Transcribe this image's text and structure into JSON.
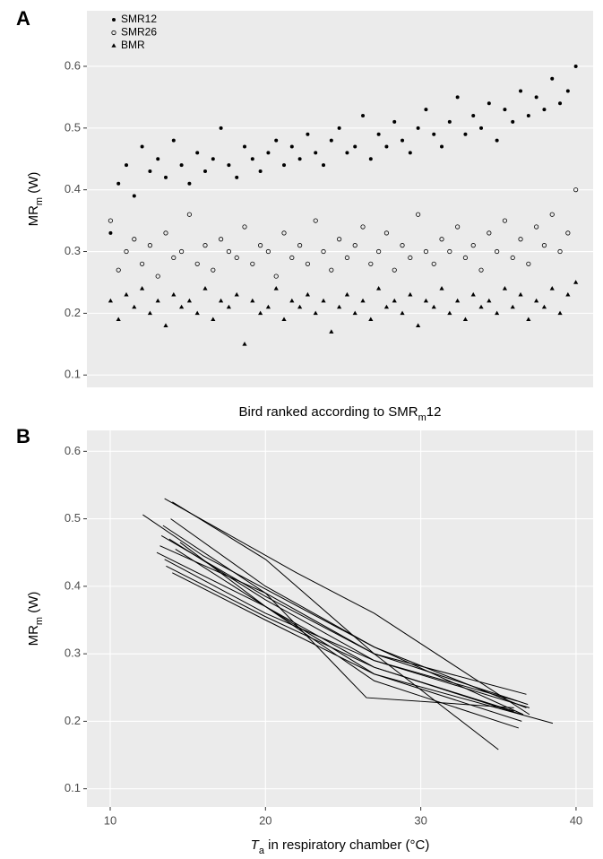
{
  "chart_data": [
    {
      "type": "scatter",
      "panel_label": "A",
      "x_label": [
        {
          "text": "Bird ranked according to SMR",
          "style": "normal"
        },
        {
          "text": "m",
          "style": "sub"
        },
        {
          "text": "12",
          "style": "normal"
        }
      ],
      "y_label": [
        {
          "text": "MR",
          "style": "normal"
        },
        {
          "text": "m",
          "style": "sub"
        },
        {
          "text": " (W)",
          "style": "normal"
        }
      ],
      "x": [
        1,
        2,
        3,
        4,
        5,
        6,
        7,
        8,
        9,
        10,
        11,
        12,
        13,
        14,
        15,
        16,
        17,
        18,
        19,
        20,
        21,
        22,
        23,
        24,
        25,
        26,
        27,
        28,
        29,
        30,
        31,
        32,
        33,
        34,
        35,
        36,
        37,
        38,
        39,
        40,
        41,
        42,
        43,
        44,
        45,
        46,
        47,
        48,
        49,
        50,
        51,
        52,
        53,
        54,
        55,
        56,
        57,
        58,
        59,
        60
      ],
      "xlim": [
        -2,
        62.2
      ],
      "ylim": [
        0.08,
        0.69
      ],
      "yticks": [
        0.1,
        0.2,
        0.3,
        0.4,
        0.5,
        0.6
      ],
      "grid": true,
      "series": [
        {
          "name": "SMR12",
          "marker": "filled-circle",
          "color": "#000000",
          "values": [
            0.33,
            0.41,
            0.44,
            0.39,
            0.47,
            0.43,
            0.45,
            0.42,
            0.48,
            0.44,
            0.41,
            0.46,
            0.43,
            0.45,
            0.5,
            0.44,
            0.42,
            0.47,
            0.45,
            0.43,
            0.46,
            0.48,
            0.44,
            0.47,
            0.45,
            0.49,
            0.46,
            0.44,
            0.48,
            0.5,
            0.46,
            0.47,
            0.52,
            0.45,
            0.49,
            0.47,
            0.51,
            0.48,
            0.46,
            0.5,
            0.53,
            0.49,
            0.47,
            0.51,
            0.55,
            0.49,
            0.52,
            0.5,
            0.54,
            0.48,
            0.53,
            0.51,
            0.56,
            0.52,
            0.55,
            0.53,
            0.58,
            0.54,
            0.56,
            0.6
          ]
        },
        {
          "name": "SMR26",
          "marker": "open-circle",
          "color": "#000000",
          "values": [
            0.35,
            0.27,
            0.3,
            0.32,
            0.28,
            0.31,
            0.26,
            0.33,
            0.29,
            0.3,
            0.36,
            0.28,
            0.31,
            0.27,
            0.32,
            0.3,
            0.29,
            0.34,
            0.28,
            0.31,
            0.3,
            0.26,
            0.33,
            0.29,
            0.31,
            0.28,
            0.35,
            0.3,
            0.27,
            0.32,
            0.29,
            0.31,
            0.34,
            0.28,
            0.3,
            0.33,
            0.27,
            0.31,
            0.29,
            0.36,
            0.3,
            0.28,
            0.32,
            0.3,
            0.34,
            0.29,
            0.31,
            0.27,
            0.33,
            0.3,
            0.35,
            0.29,
            0.32,
            0.28,
            0.34,
            0.31,
            0.36,
            0.3,
            0.33,
            0.4
          ]
        },
        {
          "name": "BMR",
          "marker": "triangle",
          "color": "#000000",
          "values": [
            0.22,
            0.19,
            0.23,
            0.21,
            0.24,
            0.2,
            0.22,
            0.18,
            0.23,
            0.21,
            0.22,
            0.2,
            0.24,
            0.19,
            0.22,
            0.21,
            0.23,
            0.15,
            0.22,
            0.2,
            0.21,
            0.24,
            0.19,
            0.22,
            0.21,
            0.23,
            0.2,
            0.22,
            0.17,
            0.21,
            0.23,
            0.2,
            0.22,
            0.19,
            0.24,
            0.21,
            0.22,
            0.2,
            0.23,
            0.18,
            0.22,
            0.21,
            0.24,
            0.2,
            0.22,
            0.19,
            0.23,
            0.21,
            0.22,
            0.2,
            0.24,
            0.21,
            0.23,
            0.19,
            0.22,
            0.21,
            0.24,
            0.2,
            0.23,
            0.25
          ]
        }
      ]
    },
    {
      "type": "line",
      "panel_label": "B",
      "x_label": [
        {
          "text": "T",
          "style": "italic"
        },
        {
          "text": "a",
          "style": "sub"
        },
        {
          "text": " in respiratory chamber (°C)",
          "style": "normal"
        }
      ],
      "y_label": [
        {
          "text": "MR",
          "style": "normal"
        },
        {
          "text": "m",
          "style": "sub"
        },
        {
          "text": " (W)",
          "style": "normal"
        }
      ],
      "xlim": [
        8.5,
        41.1
      ],
      "ylim": [
        0.073,
        0.631
      ],
      "xticks": [
        10,
        20,
        30,
        40
      ],
      "yticks": [
        0.1,
        0.2,
        0.3,
        0.4,
        0.5,
        0.6
      ],
      "grid": true,
      "series": [
        {
          "color": "#000000",
          "x": [
            12.1,
            16,
            27,
            36.8
          ],
          "values": [
            0.506,
            0.445,
            0.31,
            0.22
          ]
        },
        {
          "color": "#000000",
          "x": [
            13.5,
            22,
            27,
            37
          ],
          "values": [
            0.53,
            0.42,
            0.36,
            0.21
          ]
        },
        {
          "color": "#000000",
          "x": [
            14,
            20,
            27,
            35
          ],
          "values": [
            0.525,
            0.44,
            0.3,
            0.158
          ]
        },
        {
          "color": "#000000",
          "x": [
            13.2,
            20,
            26.5,
            36
          ],
          "values": [
            0.46,
            0.39,
            0.235,
            0.22
          ]
        },
        {
          "color": "#000000",
          "x": [
            13,
            20,
            27,
            36.5
          ],
          "values": [
            0.45,
            0.37,
            0.28,
            0.21
          ]
        },
        {
          "color": "#000000",
          "x": [
            13.5,
            20,
            27,
            37
          ],
          "values": [
            0.44,
            0.36,
            0.29,
            0.22
          ]
        },
        {
          "color": "#000000",
          "x": [
            14,
            20,
            27,
            38.5
          ],
          "values": [
            0.42,
            0.35,
            0.27,
            0.197
          ]
        },
        {
          "color": "#000000",
          "x": [
            13.4,
            20,
            27,
            36.8
          ],
          "values": [
            0.49,
            0.39,
            0.3,
            0.24
          ]
        },
        {
          "color": "#000000",
          "x": [
            13.8,
            20,
            27,
            36.2
          ],
          "values": [
            0.47,
            0.38,
            0.29,
            0.23
          ]
        },
        {
          "color": "#000000",
          "x": [
            14.2,
            20,
            27,
            36.5
          ],
          "values": [
            0.455,
            0.37,
            0.27,
            0.2
          ]
        },
        {
          "color": "#000000",
          "x": [
            13.6,
            20,
            27,
            36
          ],
          "values": [
            0.43,
            0.355,
            0.28,
            0.215
          ]
        },
        {
          "color": "#000000",
          "x": [
            13.9,
            20,
            27,
            36.6
          ],
          "values": [
            0.5,
            0.4,
            0.31,
            0.21
          ]
        },
        {
          "color": "#000000",
          "x": [
            14.5,
            20,
            27,
            36.3
          ],
          "values": [
            0.465,
            0.37,
            0.26,
            0.19
          ]
        },
        {
          "color": "#000000",
          "x": [
            13.3,
            20,
            27,
            36.9
          ],
          "values": [
            0.475,
            0.385,
            0.3,
            0.225
          ]
        }
      ]
    }
  ]
}
